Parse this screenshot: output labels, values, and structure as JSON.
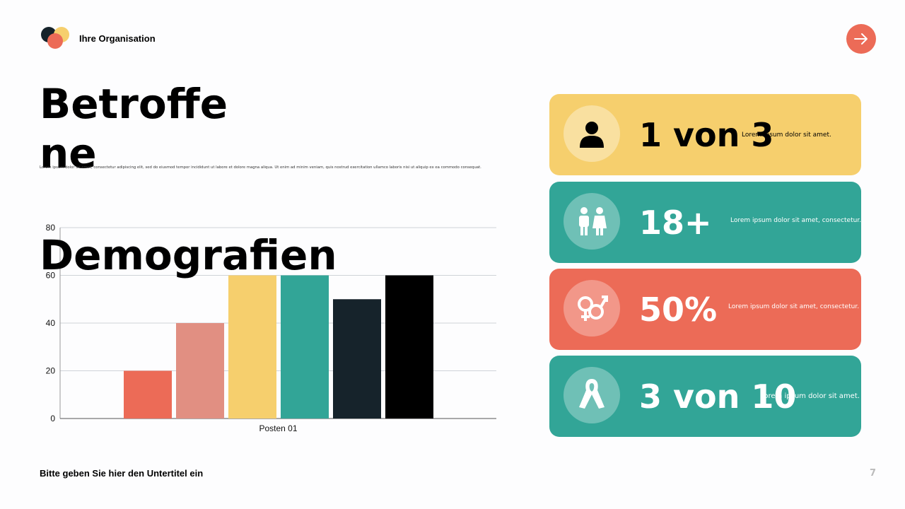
{
  "header": {
    "org_name": "Ihre Organisation"
  },
  "title": {
    "line1": "Betroffene",
    "line2": "Demografien"
  },
  "body_text": "Lorem ipsum dolor sit amet, consectetur adipiscing elit, sed do eiusmod tempor incididunt ut labore et dolore magna aliqua. Ut enim ad minim veniam, quis nostrud exercitation ullamco laboris nisi ut aliquip ex ea commodo consequat.",
  "footer": {
    "subtitle": "Bitte geben Sie hier den Untertitel ein",
    "page": "7"
  },
  "colors": {
    "coral": "#ec6b57",
    "salmon": "#e18f82",
    "yellow": "#f6cf6d",
    "teal": "#32a597",
    "navy": "#16232b",
    "black": "#000000"
  },
  "chart_data": {
    "type": "bar",
    "categories": [
      "Posten 01"
    ],
    "series": [
      {
        "values": [
          20
        ],
        "color": "#ec6b57"
      },
      {
        "values": [
          40
        ],
        "color": "#e18f82"
      },
      {
        "values": [
          60
        ],
        "color": "#f6cf6d"
      },
      {
        "values": [
          60
        ],
        "color": "#32a597"
      },
      {
        "values": [
          50
        ],
        "color": "#16232b"
      },
      {
        "values": [
          60
        ],
        "color": "#000000"
      }
    ],
    "ylim": [
      0,
      80
    ],
    "yticks": [
      "0",
      "20",
      "40",
      "60",
      "80"
    ],
    "grid": true
  },
  "stats": [
    {
      "value": "1 von 3",
      "text": "Lorem ipsum dolor sit amet.",
      "icon": "person-icon",
      "color": "#f6cf6d",
      "text_color": "#000000"
    },
    {
      "value": "18+",
      "text": "Lorem ipsum dolor sit amet, consectetur.",
      "icon": "people-icon",
      "color": "#32a597",
      "text_color": "#ffffff"
    },
    {
      "value": "50%",
      "text": "Lorem ipsum dolor sit amet, consectetur.",
      "icon": "gender-icon",
      "color": "#ec6b57",
      "text_color": "#ffffff"
    },
    {
      "value": "3 von 10",
      "text": "Lorem ipsum dolor sit amet.",
      "icon": "ribbon-icon",
      "color": "#32a597",
      "text_color": "#ffffff"
    }
  ]
}
